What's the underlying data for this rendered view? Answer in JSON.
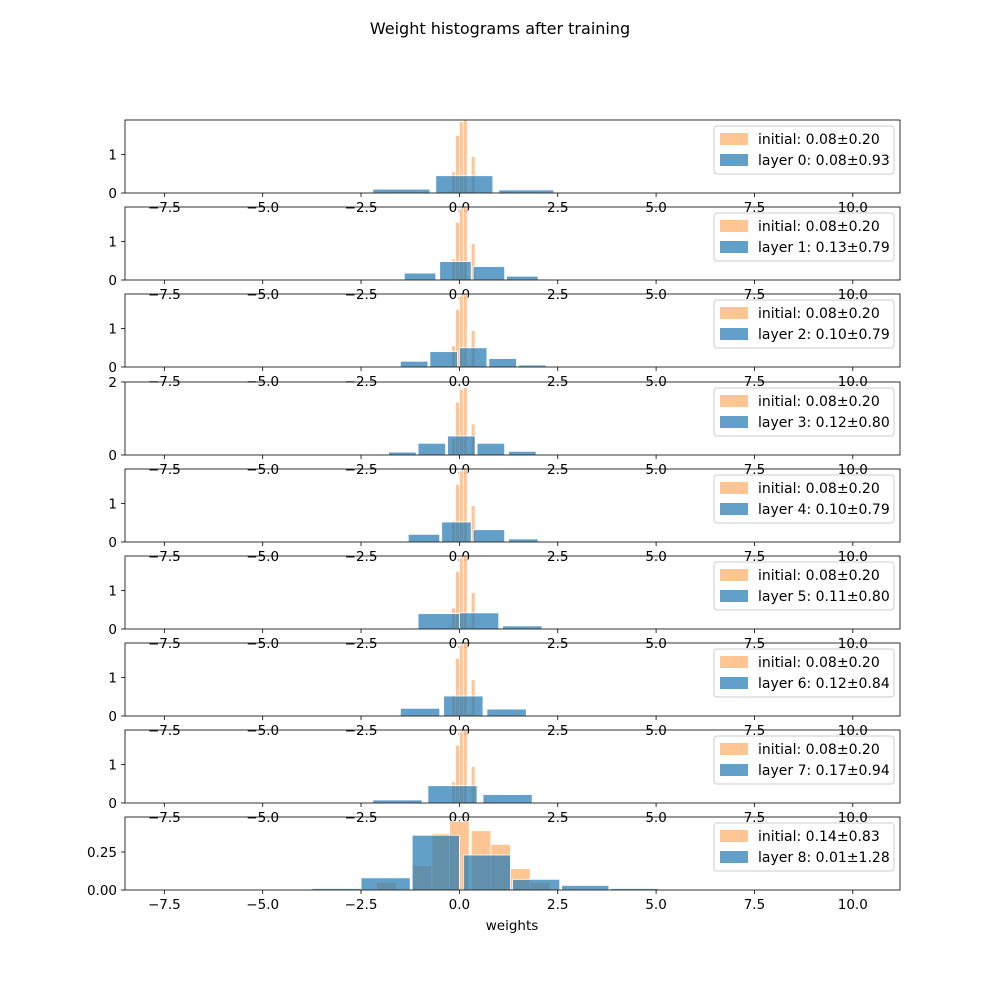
{
  "chart_data": {
    "type": "bar",
    "title": "Weight histograms after training",
    "xlabel": "weights",
    "xlim": [
      -8.5,
      11.2
    ],
    "xticks": [
      -7.5,
      -5.0,
      -2.5,
      0.0,
      2.5,
      5.0,
      7.5,
      10.0
    ],
    "xtick_labels": [
      "−7.5",
      "−5.0",
      "−2.5",
      "0.0",
      "2.5",
      "5.0",
      "7.5",
      "10.0"
    ],
    "legend_position": "upper right",
    "colors": {
      "initial": "#ffbf86",
      "layer": "#1f77b4"
    },
    "panels": [
      {
        "ylim": [
          0,
          1.9
        ],
        "yticks": [
          0,
          1
        ],
        "ytick_labels": [
          "0",
          "1"
        ],
        "series": [
          {
            "name": "initial: 0.08±0.20",
            "role": "initial",
            "bins": [
              [
                -0.2,
                -0.1,
                0.55
              ],
              [
                -0.1,
                0.0,
                1.5
              ],
              [
                0.0,
                0.1,
                1.85
              ],
              [
                0.1,
                0.2,
                1.9
              ],
              [
                0.2,
                0.3,
                0.05
              ],
              [
                0.3,
                0.4,
                0.95
              ],
              [
                -0.3,
                -0.2,
                0.05
              ]
            ]
          },
          {
            "name": "layer 0: 0.08±0.93",
            "role": "layer",
            "bins": [
              [
                -3.75,
                -2.5,
                0.02
              ],
              [
                -2.2,
                -0.75,
                0.1
              ],
              [
                -0.6,
                0.85,
                0.45
              ],
              [
                1.0,
                2.4,
                0.08
              ],
              [
                2.55,
                4.0,
                0.02
              ]
            ]
          }
        ]
      },
      {
        "ylim": [
          0,
          1.9
        ],
        "yticks": [
          0,
          1
        ],
        "ytick_labels": [
          "0",
          "1"
        ],
        "series": [
          {
            "name": "initial: 0.08±0.20",
            "role": "initial",
            "bins": [
              [
                -0.2,
                -0.1,
                0.55
              ],
              [
                -0.1,
                0.0,
                1.5
              ],
              [
                0.0,
                0.1,
                1.85
              ],
              [
                0.1,
                0.2,
                1.9
              ],
              [
                0.2,
                0.3,
                0.05
              ],
              [
                0.3,
                0.4,
                0.95
              ]
            ]
          },
          {
            "name": "layer 1: 0.13±0.79",
            "role": "layer",
            "bins": [
              [
                -2.25,
                -1.45,
                0.02
              ],
              [
                -1.4,
                -0.6,
                0.18
              ],
              [
                -0.5,
                0.3,
                0.48
              ],
              [
                0.35,
                1.15,
                0.35
              ],
              [
                1.2,
                2.0,
                0.1
              ],
              [
                2.05,
                2.85,
                0.02
              ]
            ]
          }
        ]
      },
      {
        "ylim": [
          0,
          1.9
        ],
        "yticks": [
          0,
          1
        ],
        "ytick_labels": [
          "0",
          "1"
        ],
        "series": [
          {
            "name": "initial: 0.08±0.20",
            "role": "initial",
            "bins": [
              [
                -0.2,
                -0.1,
                0.55
              ],
              [
                -0.1,
                0.0,
                1.5
              ],
              [
                0.0,
                0.1,
                1.85
              ],
              [
                0.1,
                0.2,
                1.9
              ],
              [
                0.2,
                0.3,
                0.05
              ],
              [
                0.3,
                0.4,
                0.95
              ]
            ]
          },
          {
            "name": "layer 2: 0.10±0.79",
            "role": "layer",
            "bins": [
              [
                -2.25,
                -1.45,
                0.02
              ],
              [
                -1.5,
                -0.8,
                0.15
              ],
              [
                -0.75,
                -0.05,
                0.4
              ],
              [
                0.0,
                0.7,
                0.5
              ],
              [
                0.75,
                1.45,
                0.22
              ],
              [
                1.5,
                2.2,
                0.05
              ]
            ]
          }
        ]
      },
      {
        "ylim": [
          0,
          2.0
        ],
        "yticks": [
          0,
          2
        ],
        "ytick_labels": [
          "0",
          "2"
        ],
        "series": [
          {
            "name": "initial: 0.08±0.20",
            "role": "initial",
            "bins": [
              [
                -0.2,
                -0.1,
                0.45
              ],
              [
                -0.1,
                0.0,
                1.45
              ],
              [
                0.0,
                0.1,
                1.8
              ],
              [
                0.1,
                0.2,
                1.85
              ],
              [
                0.2,
                0.3,
                0.05
              ],
              [
                0.3,
                0.4,
                0.85
              ]
            ]
          },
          {
            "name": "layer 3: 0.12±0.80",
            "role": "layer",
            "bins": [
              [
                -1.8,
                -1.1,
                0.08
              ],
              [
                -1.05,
                -0.35,
                0.32
              ],
              [
                -0.3,
                0.4,
                0.52
              ],
              [
                0.45,
                1.15,
                0.32
              ],
              [
                1.25,
                1.95,
                0.1
              ],
              [
                2.0,
                2.7,
                0.02
              ]
            ]
          }
        ]
      },
      {
        "ylim": [
          0,
          1.9
        ],
        "yticks": [
          0,
          1
        ],
        "ytick_labels": [
          "0",
          "1"
        ],
        "series": [
          {
            "name": "initial: 0.08±0.20",
            "role": "initial",
            "bins": [
              [
                -0.2,
                -0.1,
                0.55
              ],
              [
                -0.1,
                0.0,
                1.5
              ],
              [
                0.0,
                0.1,
                1.85
              ],
              [
                0.1,
                0.2,
                1.9
              ],
              [
                0.2,
                0.3,
                0.05
              ],
              [
                0.3,
                0.4,
                0.95
              ]
            ]
          },
          {
            "name": "layer 4: 0.10±0.79",
            "role": "layer",
            "bins": [
              [
                -2.1,
                -1.35,
                0.02
              ],
              [
                -1.3,
                -0.5,
                0.2
              ],
              [
                -0.45,
                0.3,
                0.52
              ],
              [
                0.35,
                1.15,
                0.32
              ],
              [
                1.25,
                2.0,
                0.08
              ]
            ]
          }
        ]
      },
      {
        "ylim": [
          0,
          1.9
        ],
        "yticks": [
          0,
          1
        ],
        "ytick_labels": [
          "0",
          "1"
        ],
        "series": [
          {
            "name": "initial: 0.08±0.20",
            "role": "initial",
            "bins": [
              [
                -0.2,
                -0.1,
                0.55
              ],
              [
                -0.1,
                0.0,
                1.5
              ],
              [
                0.0,
                0.1,
                1.85
              ],
              [
                0.1,
                0.2,
                1.9
              ],
              [
                0.2,
                0.3,
                0.05
              ],
              [
                0.3,
                0.4,
                0.95
              ]
            ]
          },
          {
            "name": "layer 5: 0.11±0.80",
            "role": "layer",
            "bins": [
              [
                -2.2,
                -1.15,
                0.02
              ],
              [
                -1.05,
                0.0,
                0.4
              ],
              [
                0.0,
                1.0,
                0.42
              ],
              [
                1.1,
                2.1,
                0.08
              ]
            ]
          }
        ]
      },
      {
        "ylim": [
          0,
          1.9
        ],
        "yticks": [
          0,
          1
        ],
        "ytick_labels": [
          "0",
          "1"
        ],
        "series": [
          {
            "name": "initial: 0.08±0.20",
            "role": "initial",
            "bins": [
              [
                -0.2,
                -0.1,
                0.55
              ],
              [
                -0.1,
                0.0,
                1.5
              ],
              [
                0.0,
                0.1,
                1.85
              ],
              [
                0.1,
                0.2,
                1.9
              ],
              [
                0.2,
                0.3,
                0.05
              ],
              [
                0.3,
                0.4,
                0.95
              ]
            ]
          },
          {
            "name": "layer 6: 0.12±0.84",
            "role": "layer",
            "bins": [
              [
                -2.6,
                -1.7,
                0.02
              ],
              [
                -1.5,
                -0.5,
                0.2
              ],
              [
                -0.4,
                0.6,
                0.52
              ],
              [
                0.7,
                1.7,
                0.18
              ],
              [
                1.85,
                2.85,
                0.02
              ],
              [
                2.95,
                3.95,
                0.02
              ]
            ]
          }
        ]
      },
      {
        "ylim": [
          0,
          1.9
        ],
        "yticks": [
          0,
          1
        ],
        "ytick_labels": [
          "0",
          "1"
        ],
        "series": [
          {
            "name": "initial: 0.08±0.20",
            "role": "initial",
            "bins": [
              [
                -0.2,
                -0.1,
                0.55
              ],
              [
                -0.1,
                0.0,
                1.5
              ],
              [
                0.0,
                0.1,
                1.85
              ],
              [
                0.1,
                0.2,
                1.9
              ],
              [
                0.2,
                0.3,
                0.05
              ],
              [
                0.3,
                0.4,
                0.95
              ]
            ]
          },
          {
            "name": "layer 7: 0.17±0.94",
            "role": "layer",
            "bins": [
              [
                -2.2,
                -0.95,
                0.08
              ],
              [
                -0.8,
                0.45,
                0.45
              ],
              [
                0.6,
                1.85,
                0.22
              ],
              [
                1.95,
                3.2,
                0.02
              ]
            ]
          }
        ]
      },
      {
        "ylim": [
          0,
          0.48
        ],
        "yticks": [
          0,
          0.25
        ],
        "ytick_labels": [
          "0.00",
          "0.25"
        ],
        "series": [
          {
            "name": "initial: 0.14±0.83",
            "role": "initial",
            "bins": [
              [
                -2.1,
                -1.6,
                0.05
              ],
              [
                -1.2,
                -0.7,
                0.16
              ],
              [
                -0.7,
                -0.2,
                0.37
              ],
              [
                -0.25,
                0.25,
                0.45
              ],
              [
                0.3,
                0.8,
                0.39
              ],
              [
                0.8,
                1.3,
                0.3
              ],
              [
                1.3,
                1.8,
                0.14
              ],
              [
                1.8,
                2.3,
                0.05
              ]
            ]
          },
          {
            "name": "layer 8: 0.01±1.28",
            "role": "layer",
            "bins": [
              [
                -3.75,
                -2.5,
                0.01
              ],
              [
                -2.5,
                -1.25,
                0.08
              ],
              [
                -1.2,
                0.0,
                0.36
              ],
              [
                0.1,
                1.3,
                0.23
              ],
              [
                1.35,
                2.55,
                0.07
              ],
              [
                2.6,
                3.8,
                0.03
              ],
              [
                3.85,
                5.05,
                0.01
              ]
            ]
          }
        ]
      }
    ]
  }
}
